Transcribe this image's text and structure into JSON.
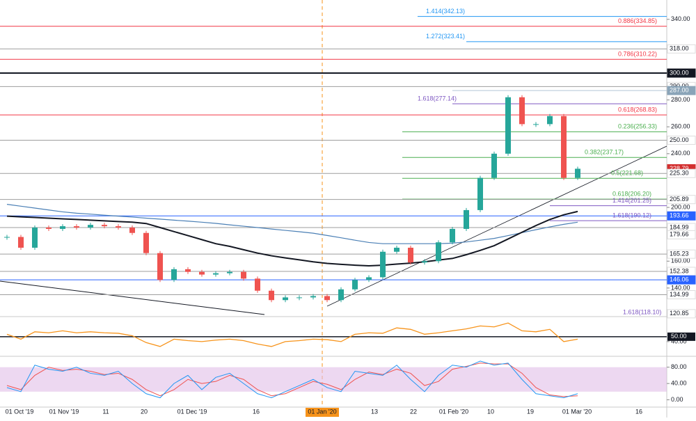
{
  "chart_data": {
    "type": "candlestick",
    "ylim": [
      118.7,
      354.4
    ],
    "yticks": [
      {
        "value": 340,
        "label": "340.00"
      },
      {
        "value": 280,
        "label": "280.00"
      },
      {
        "value": 260,
        "label": "260.00"
      },
      {
        "value": 240,
        "label": "240.00"
      },
      {
        "value": 200,
        "label": "200.00"
      },
      {
        "value": 160,
        "label": "160.00"
      },
      {
        "value": 140,
        "label": "140.00"
      }
    ],
    "x_labels": [
      "01 Oct '19",
      "01 Nov '19",
      "11",
      "20",
      "01 Dec '19",
      "16",
      "01 Jan '20",
      "13",
      "22",
      "01 Feb '20",
      "10",
      "19",
      "01 Mar '20",
      "16"
    ],
    "close": [
      178,
      170,
      185,
      184,
      186,
      185,
      187,
      186,
      185,
      181,
      166,
      146,
      154,
      152,
      150,
      151,
      152,
      147,
      138,
      131,
      133,
      133,
      134,
      131,
      139,
      146,
      148,
      167,
      170,
      159,
      160,
      174,
      184,
      198,
      222,
      240,
      282,
      262,
      262,
      268,
      222,
      228.79
    ],
    "up_color": "#26a69a",
    "down_color": "#ef5350",
    "ma_black": [
      193.5,
      193,
      192.5,
      192,
      191.5,
      191,
      190.5,
      190,
      189.5,
      189,
      188,
      185,
      182,
      179,
      176,
      173,
      171,
      168.5,
      166,
      164,
      162.4,
      161,
      159.5,
      158.3,
      157.6,
      157,
      156.5,
      157,
      157.8,
      158.5,
      159.5,
      160.8,
      162,
      164.8,
      168,
      171.5,
      176.5,
      181.5,
      186.5,
      191,
      194.5,
      197
    ],
    "ma_black_color": "#131722",
    "ma_blue": [
      202.3,
      200.9,
      199.5,
      198.1,
      196.7,
      195.7,
      195,
      194.2,
      193.5,
      192.8,
      192,
      191.3,
      190.5,
      189.8,
      189,
      188.1,
      187,
      186,
      185,
      183.9,
      182.9,
      181.9,
      180.8,
      179.1,
      177.4,
      175.6,
      173.9,
      173,
      173,
      173,
      173,
      173,
      173.4,
      174.3,
      175.6,
      176.9,
      179,
      181.2,
      183.4,
      185.5,
      187.4,
      189
    ],
    "ma_blue_color": "#4a7fb5",
    "fibs": [
      {
        "label": "1.414(342.13)",
        "value": 342.13,
        "color": "#2196f3"
      },
      {
        "label": "0.886(334.85)",
        "value": 334.85,
        "color": "#f23645"
      },
      {
        "label": "1.272(323.41)",
        "value": 323.41,
        "color": "#2196f3"
      },
      {
        "label": "0.786(310.22)",
        "value": 310.22,
        "color": "#f23645"
      },
      {
        "label": "1.618(277.14)",
        "value": 277.14,
        "color": "#7e57c2"
      },
      {
        "label": "0.618(268.83)",
        "value": 268.83,
        "color": "#f23645"
      },
      {
        "label": "0.236(256.33)",
        "value": 256.33,
        "color": "#4caf50"
      },
      {
        "label": "0.382(237.17)",
        "value": 237.17,
        "color": "#4caf50"
      },
      {
        "label": "0.5(221.68)",
        "value": 221.68,
        "color": "#4caf50"
      },
      {
        "label": "0.618(206.20)",
        "value": 206.2,
        "color": "#4caf50"
      },
      {
        "label": "1.414(201.25)",
        "value": 201.25,
        "color": "#7e57c2"
      },
      {
        "label": "1.618(190.12)",
        "value": 190.12,
        "color": "#7e57c2"
      },
      {
        "label": "1.618(118.10)",
        "value": 118.1,
        "color": "#7e57c2"
      }
    ],
    "price_labels": [
      {
        "label": "318.00",
        "value": 318,
        "bg": "#ffffff",
        "fg": "#131722",
        "line": "#9e9e9e"
      },
      {
        "label": "300.00",
        "value": 300,
        "bg": "#131722",
        "fg": "#ffffff",
        "line": "#131722"
      },
      {
        "label": "290.00",
        "value": 290,
        "bg": "#ffffff",
        "fg": "#131722",
        "line": "#9e9e9e"
      },
      {
        "label": "287.00",
        "value": 287,
        "bg": "#8aa4b8",
        "fg": "#ffffff",
        "line": "#b2c5d6"
      },
      {
        "label": "250.00",
        "value": 250,
        "bg": "#ffffff",
        "fg": "#131722",
        "line": "#9e9e9e"
      },
      {
        "label": "228.79",
        "value": 228.79,
        "bg": "#d32f2f",
        "fg": "#ffffff"
      },
      {
        "label": "225.30",
        "value": 225.3,
        "bg": "#ffffff",
        "fg": "#131722",
        "line": "#9e9e9e"
      },
      {
        "label": "205.89",
        "value": 205.89,
        "bg": "#ffffff",
        "fg": "#131722",
        "line": "#9e9e9e"
      },
      {
        "label": "193.66",
        "value": 193.66,
        "bg": "#2962ff",
        "fg": "#ffffff",
        "line": "#2962ff"
      },
      {
        "label": "184.99",
        "value": 184.99,
        "bg": "#ffffff",
        "fg": "#131722",
        "line": "#9e9e9e"
      },
      {
        "label": "179.66",
        "value": 179.66,
        "bg": "#ffffff",
        "fg": "#131722"
      },
      {
        "label": "165.23",
        "value": 165.23,
        "bg": "#ffffff",
        "fg": "#131722",
        "line": "#9e9e9e"
      },
      {
        "label": "152.38",
        "value": 152.38,
        "bg": "#ffffff",
        "fg": "#131722",
        "line": "#9e9e9e"
      },
      {
        "label": "146.06",
        "value": 146.06,
        "bg": "#2962ff",
        "fg": "#ffffff",
        "line": "#2962ff"
      },
      {
        "label": "134.99",
        "value": 134.99,
        "bg": "#ffffff",
        "fg": "#131722",
        "line": "#9e9e9e"
      },
      {
        "label": "120.85",
        "value": 120.85,
        "bg": "#ffffff",
        "fg": "#131722"
      }
    ],
    "rsi": {
      "ylim": [
        10,
        91
      ],
      "yticks": [
        {
          "value": 50,
          "label": "50.00"
        },
        {
          "value": 40,
          "label": "40.00"
        }
      ],
      "color": "#f7931a",
      "values": [
        55,
        45,
        60,
        58,
        62,
        58,
        60,
        58,
        57,
        52,
        38,
        30,
        45,
        42,
        40,
        43,
        45,
        42,
        35,
        30,
        40,
        42,
        45,
        44,
        40,
        55,
        58,
        57,
        68,
        65,
        55,
        58,
        62,
        66,
        72,
        70,
        78,
        62,
        60,
        65,
        40,
        45
      ]
    },
    "stoch": {
      "ylim": [
        -17.8,
        106.7
      ],
      "yticks": [
        {
          "value": 80,
          "label": "80.00"
        },
        {
          "value": 40,
          "label": "40.00"
        },
        {
          "value": 0,
          "label": "0.00"
        }
      ],
      "band": [
        20,
        80
      ],
      "band_color": "#e1bee7",
      "k_color": "#2196f3",
      "d_color": "#ef5350",
      "k": [
        30,
        20,
        85,
        75,
        70,
        80,
        65,
        60,
        70,
        40,
        15,
        5,
        40,
        60,
        25,
        55,
        65,
        40,
        15,
        5,
        20,
        35,
        50,
        30,
        20,
        70,
        65,
        60,
        85,
        50,
        20,
        60,
        85,
        80,
        95,
        85,
        90,
        50,
        15,
        10,
        5,
        15
      ],
      "d": [
        35,
        25,
        60,
        80,
        72,
        75,
        70,
        62,
        65,
        50,
        25,
        10,
        25,
        50,
        40,
        45,
        60,
        50,
        25,
        10,
        15,
        30,
        45,
        38,
        25,
        50,
        68,
        62,
        75,
        65,
        35,
        45,
        75,
        82,
        90,
        88,
        88,
        65,
        30,
        12,
        8,
        10
      ]
    }
  }
}
